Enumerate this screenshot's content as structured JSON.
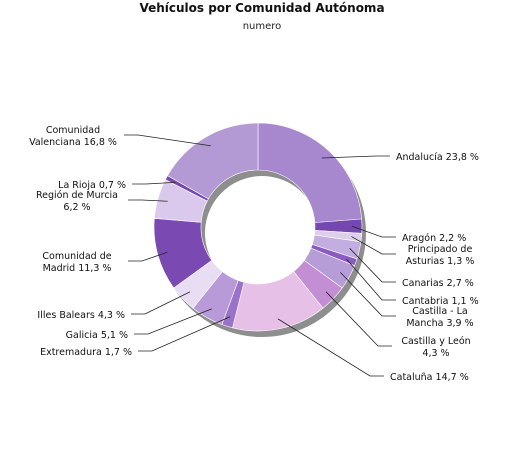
{
  "chart_data": {
    "type": "pie",
    "title": "Vehículos por Comunidad Autónoma",
    "subtitle": "numero",
    "slices": [
      {
        "label": [
          "Andalucía 23,8 %"
        ],
        "value": 23.8,
        "color": "#a788ce"
      },
      {
        "label": [
          "Aragón 2,2 %"
        ],
        "value": 2.2,
        "color": "#7448b0"
      },
      {
        "label": [
          "Principado de",
          "Asturias 1,3 %"
        ],
        "value": 1.3,
        "color": "#ddd0ec"
      },
      {
        "label": [
          "Canarias 2,7 %"
        ],
        "value": 2.7,
        "color": "#c2aee0"
      },
      {
        "label": [
          "Cantabria 1,1 %"
        ],
        "value": 1.1,
        "color": "#8a5cc2"
      },
      {
        "label": [
          "Castilla - La",
          "Mancha 3,9 %"
        ],
        "value": 3.9,
        "color": "#b79dd8"
      },
      {
        "label": [
          "Castilla y León",
          "4,3 %"
        ],
        "value": 4.3,
        "color": "#c48ed4"
      },
      {
        "label": [
          "Cataluña 14,7 %"
        ],
        "value": 14.7,
        "color": "#e6c0e6"
      },
      {
        "label": [
          "Extremadura 1,7 %"
        ],
        "value": 1.7,
        "color": "#9a72c8"
      },
      {
        "label": [
          "Galicia 5,1 %"
        ],
        "value": 5.1,
        "color": "#b99ad8"
      },
      {
        "label": [
          "Illes Balears 4,3 %"
        ],
        "value": 4.3,
        "color": "#e8ddf2"
      },
      {
        "label": [
          "Comunidad de",
          "Madrid 11,3 %"
        ],
        "value": 11.3,
        "color": "#7a4ab2"
      },
      {
        "label": [
          "Región de Murcia",
          "6,2 %"
        ],
        "value": 6.2,
        "color": "#dac9ec"
      },
      {
        "label": [
          "La Rioja 0,7 %"
        ],
        "value": 0.7,
        "color": "#7448b0"
      },
      {
        "label": [
          "Comunidad",
          "Valenciana 16,8 %"
        ],
        "value": 16.8,
        "color": "#b49ad4"
      }
    ]
  }
}
